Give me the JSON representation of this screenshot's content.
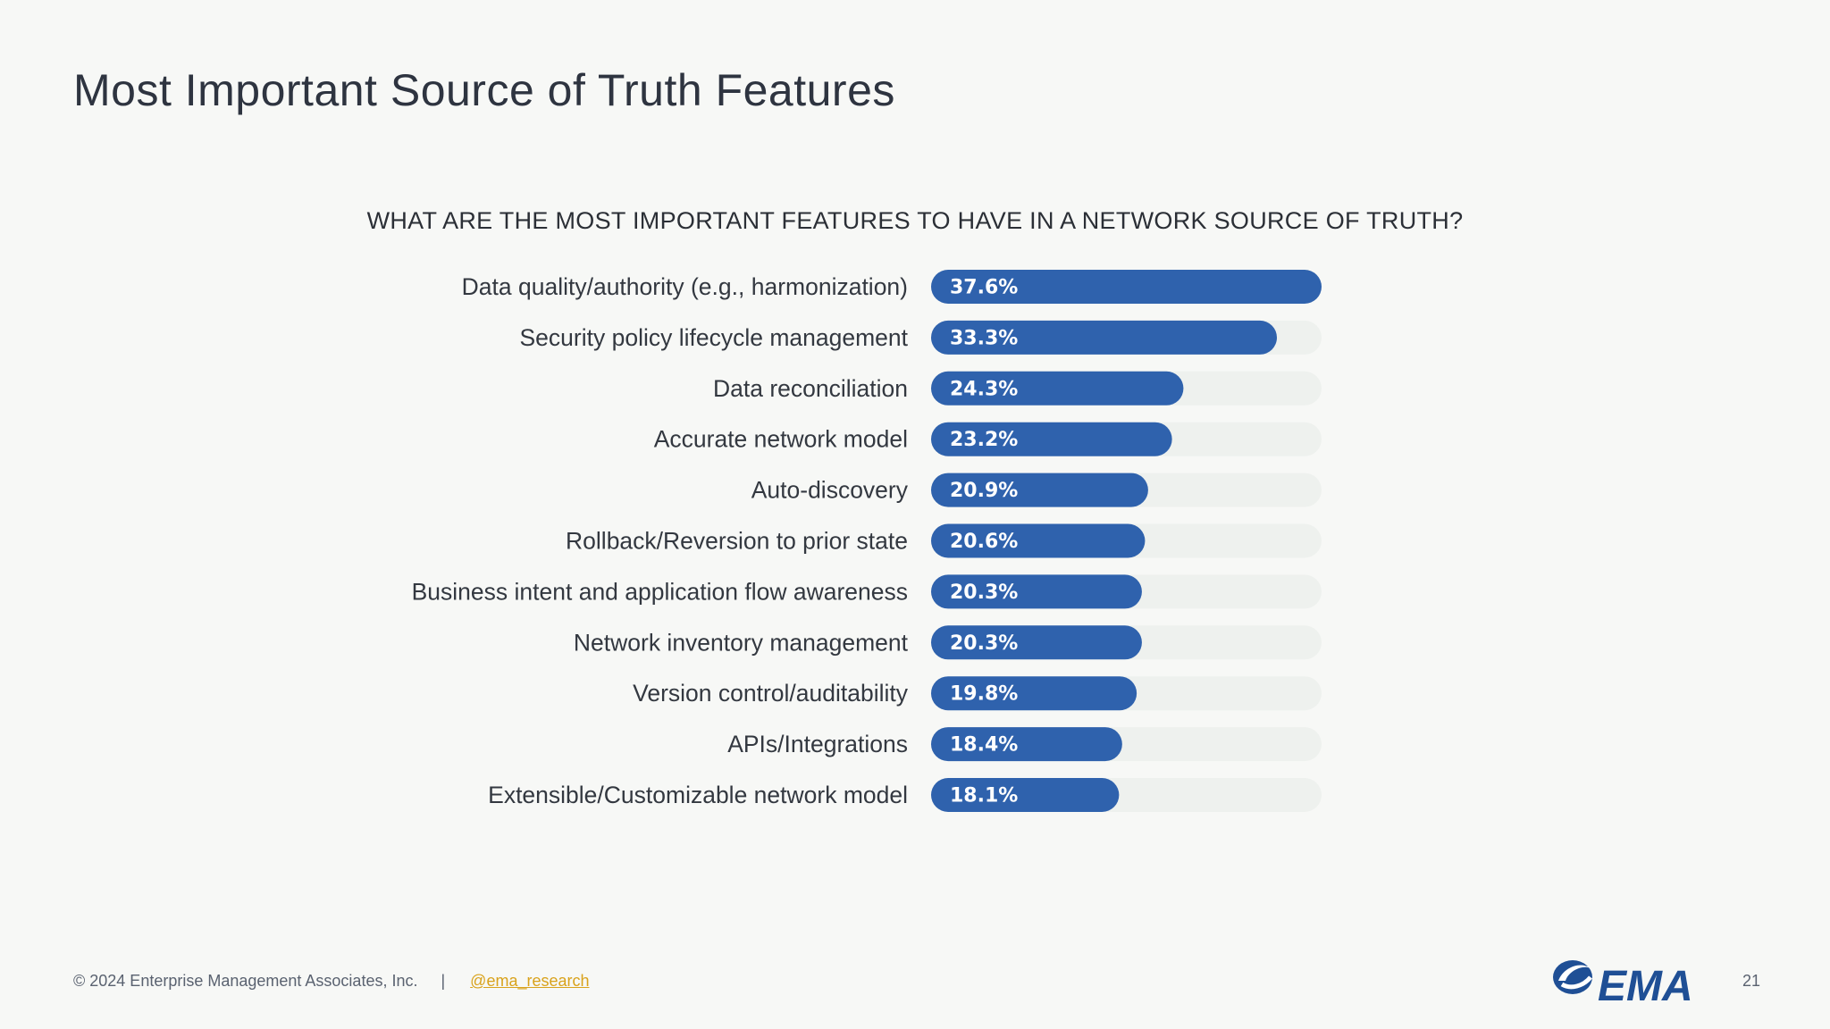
{
  "slide": {
    "title": "Most Important Source of Truth Features",
    "page_number": "21"
  },
  "footer": {
    "copyright": "© 2024 Enterprise Management Associates, Inc.",
    "separator": "|",
    "handle": "@ema_research"
  },
  "logo": {
    "text": "EMA",
    "icon": "ema-swoosh-logo-icon"
  },
  "colors": {
    "bar": "#2f62ad",
    "track": "#eef1ee",
    "background": "#f7f8f6",
    "handle": "#d9a21b"
  },
  "chart_data": {
    "type": "bar",
    "orientation": "horizontal",
    "title": "WHAT ARE THE MOST IMPORTANT FEATURES TO HAVE IN A NETWORK SOURCE OF TRUTH?",
    "categories": [
      "Data quality/authority (e.g., harmonization)",
      "Security policy lifecycle management",
      "Data reconciliation",
      "Accurate network model",
      "Auto-discovery",
      "Rollback/Reversion to prior state",
      "Business intent and application flow awareness",
      "Network inventory management",
      "Version control/auditability",
      "APIs/Integrations",
      "Extensible/Customizable network model"
    ],
    "values": [
      37.6,
      33.3,
      24.3,
      23.2,
      20.9,
      20.6,
      20.3,
      20.3,
      19.8,
      18.4,
      18.1
    ],
    "value_labels": [
      "37.6%",
      "33.3%",
      "24.3%",
      "23.2%",
      "20.9%",
      "20.6%",
      "20.3%",
      "20.3%",
      "19.8%",
      "18.4%",
      "18.1%"
    ],
    "xlim": [
      0,
      37.6
    ],
    "grid": false,
    "legend": "none"
  }
}
